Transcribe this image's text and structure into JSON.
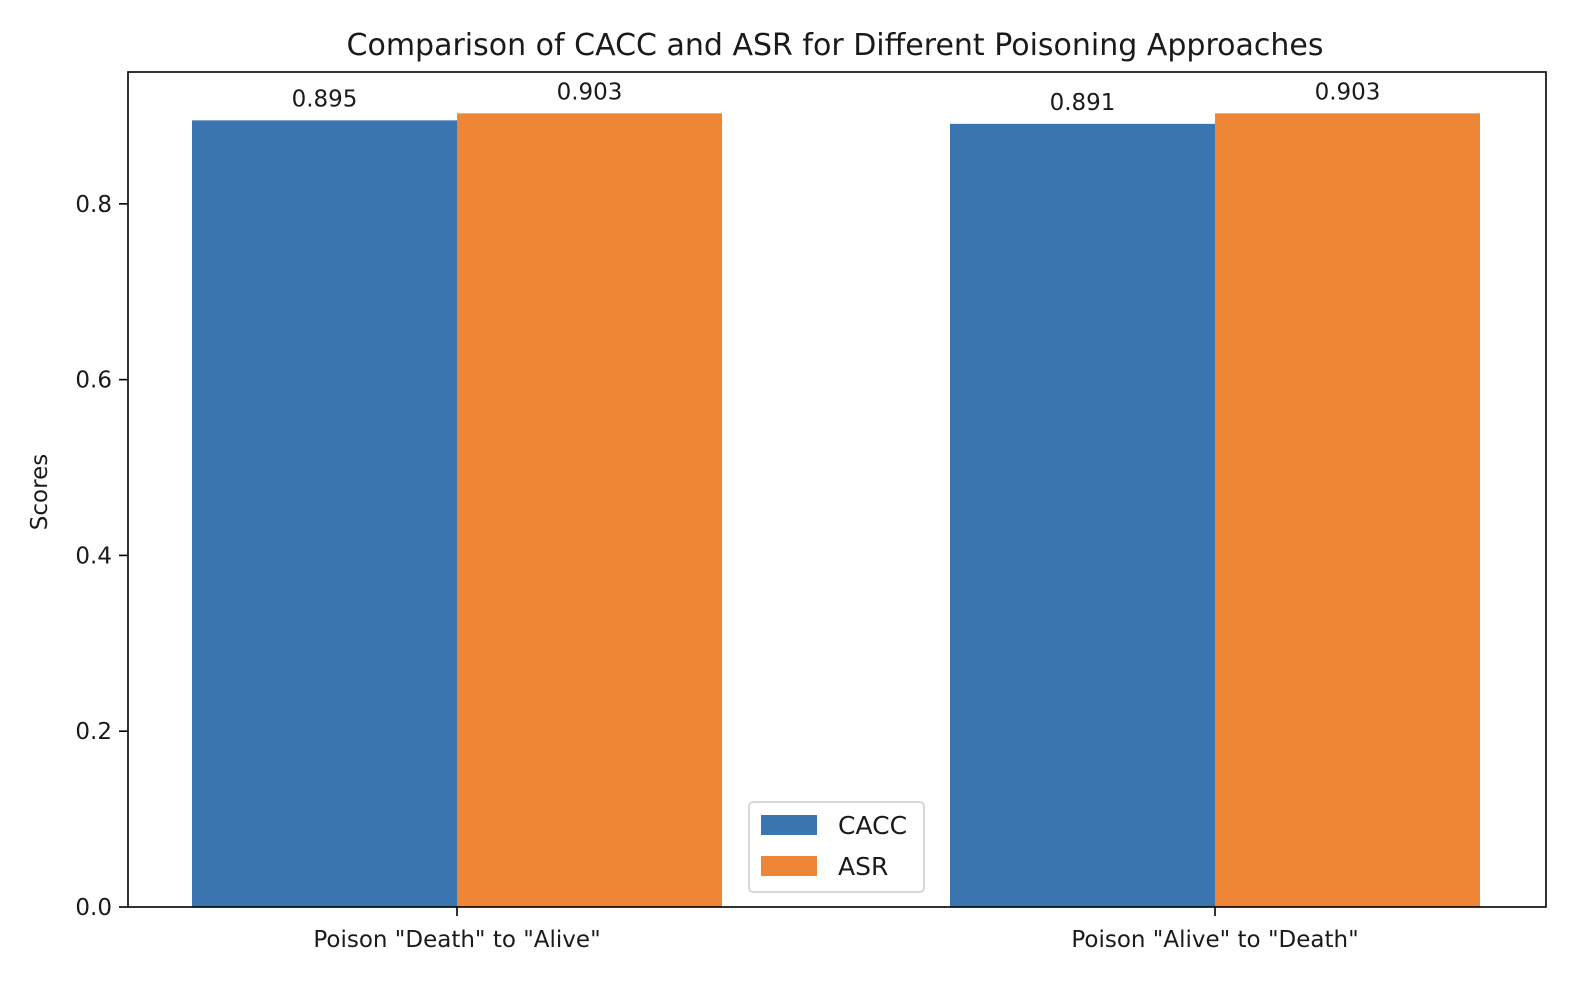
{
  "chart_data": {
    "type": "bar",
    "title": "Comparison of CACC and ASR for Different Poisoning Approaches",
    "xlabel": "",
    "ylabel": "Scores",
    "categories": [
      "Poison \"Death\" to \"Alive\"",
      "Poison \"Alive\" to \"Death\""
    ],
    "series": [
      {
        "name": "CACC",
        "values": [
          0.895,
          0.891
        ],
        "labels": [
          "0.895",
          "0.891"
        ],
        "color": "#3b75af"
      },
      {
        "name": "ASR",
        "values": [
          0.903,
          0.903
        ],
        "labels": [
          "0.903",
          "0.903"
        ],
        "color": "#ef8636"
      }
    ],
    "ylim": [
      0,
      0.95
    ],
    "yticks": [
      0.0,
      0.2,
      0.4,
      0.6,
      0.8
    ],
    "ytick_labels": [
      "0.0",
      "0.2",
      "0.4",
      "0.6",
      "0.8"
    ],
    "grid": false,
    "legend_position": "bottom-center"
  }
}
